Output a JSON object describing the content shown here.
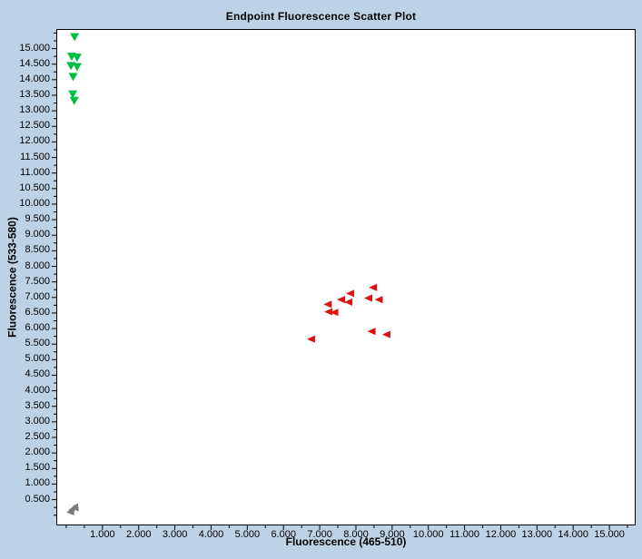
{
  "colors": {
    "background": "#BDD2E5",
    "plot_background": "#FFFFFF",
    "axis": "#000000",
    "green_series": "#00BE40",
    "red_series": "#DD1111",
    "gray_series": "#7A7A7A"
  },
  "chart_data": {
    "type": "scatter",
    "title": "Endpoint Fluorescence Scatter Plot",
    "xlabel": "Fluorescence (465-510)",
    "ylabel": "Fluorescence (533-580)",
    "xlim": [
      -0.25,
      15.7
    ],
    "ylim": [
      -0.3,
      15.6
    ],
    "grid": false,
    "legend": "none",
    "x_ticks": {
      "values": [
        1,
        2,
        3,
        4,
        5,
        6,
        7,
        8,
        9,
        10,
        11,
        12,
        13,
        14,
        15
      ],
      "labels": [
        "1.000",
        "2.000",
        "3.000",
        "4.000",
        "5.000",
        "6.000",
        "7.000",
        "8.000",
        "9.000",
        "10.000",
        "11.000",
        "12.000",
        "13.000",
        "14.000",
        "15.000"
      ],
      "minor_step": 0.5,
      "minor_min": 0,
      "minor_max": 15.5
    },
    "y_ticks": {
      "values": [
        0.5,
        1,
        1.5,
        2,
        2.5,
        3,
        3.5,
        4,
        4.5,
        5,
        5.5,
        6,
        6.5,
        7,
        7.5,
        8,
        8.5,
        9,
        9.5,
        10,
        10.5,
        11,
        11.5,
        12,
        12.5,
        13,
        13.5,
        14,
        14.5,
        15
      ],
      "labels": [
        "0.500",
        "1.000",
        "1.500",
        "2.000",
        "2.500",
        "3.000",
        "3.500",
        "4.000",
        "4.500",
        "5.000",
        "5.500",
        "6.000",
        "6.500",
        "7.000",
        "7.500",
        "8.000",
        "8.500",
        "9.000",
        "9.500",
        "10.000",
        "10.500",
        "11.000",
        "11.500",
        "12.000",
        "12.500",
        "13.000",
        "13.500",
        "14.000",
        "14.500",
        "15.000"
      ],
      "minor_step": 0.25,
      "minor_min": 0,
      "minor_max": 15.5
    },
    "series": [
      {
        "name": "green_triangles",
        "marker": "triangle-down",
        "color": "#00BE40",
        "size": 10,
        "points": [
          [
            0.23,
            15.38
          ],
          [
            0.15,
            14.75
          ],
          [
            0.3,
            14.72
          ],
          [
            0.13,
            14.45
          ],
          [
            0.3,
            14.42
          ],
          [
            0.19,
            14.1
          ],
          [
            0.18,
            13.54
          ],
          [
            0.22,
            13.33
          ]
        ]
      },
      {
        "name": "red_triangles",
        "marker": "triangle-left",
        "color": "#DD1111",
        "size": 9,
        "points": [
          [
            8.48,
            7.32
          ],
          [
            7.85,
            7.13
          ],
          [
            8.35,
            6.98
          ],
          [
            7.6,
            6.93
          ],
          [
            8.64,
            6.93
          ],
          [
            7.8,
            6.85
          ],
          [
            7.23,
            6.78
          ],
          [
            7.25,
            6.54
          ],
          [
            7.41,
            6.52
          ],
          [
            8.44,
            5.91
          ],
          [
            8.85,
            5.81
          ],
          [
            6.77,
            5.66
          ]
        ]
      },
      {
        "name": "gray_cluster",
        "marker": "triangle-left",
        "color": "#7A7A7A",
        "size": 6,
        "points": [
          [
            0.08,
            0.1
          ],
          [
            0.13,
            0.16
          ],
          [
            0.17,
            0.2
          ],
          [
            0.22,
            0.25
          ],
          [
            0.26,
            0.3
          ],
          [
            0.15,
            0.07
          ],
          [
            0.27,
            0.2
          ]
        ]
      }
    ]
  }
}
